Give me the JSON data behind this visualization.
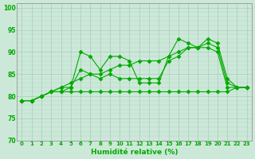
{
  "title": "",
  "xlabel": "Humidité relative (%)",
  "ylabel": "",
  "xlim": [
    -0.5,
    23.5
  ],
  "ylim": [
    70,
    101
  ],
  "yticks": [
    70,
    75,
    80,
    85,
    90,
    95,
    100
  ],
  "xticks": [
    0,
    1,
    2,
    3,
    4,
    5,
    6,
    7,
    8,
    9,
    10,
    11,
    12,
    13,
    14,
    15,
    16,
    17,
    18,
    19,
    20,
    21,
    22,
    23
  ],
  "background_color": "#cce8d8",
  "grid_color": "#aaccbb",
  "line_color": "#00aa00",
  "series": [
    [
      79,
      79,
      80,
      81,
      81,
      82,
      90,
      89,
      86,
      89,
      89,
      88,
      83,
      83,
      83,
      89,
      93,
      92,
      91,
      93,
      92,
      84,
      82,
      82
    ],
    [
      79,
      79,
      80,
      81,
      82,
      82,
      86,
      85,
      84,
      85,
      84,
      84,
      84,
      84,
      84,
      88,
      89,
      91,
      91,
      91,
      90,
      82,
      82,
      82
    ],
    [
      79,
      79,
      80,
      81,
      81,
      81,
      81,
      81,
      81,
      81,
      81,
      81,
      81,
      81,
      81,
      81,
      81,
      81,
      81,
      81,
      81,
      81,
      82,
      82
    ],
    [
      79,
      79,
      80,
      81,
      82,
      83,
      84,
      85,
      85,
      86,
      87,
      87,
      88,
      88,
      88,
      89,
      90,
      91,
      91,
      92,
      91,
      83,
      82,
      82
    ]
  ],
  "marker": "D",
  "markersize": 2.5,
  "linewidth": 0.8,
  "xlabel_fontsize": 6.5,
  "xtick_fontsize": 5,
  "ytick_fontsize": 5.5
}
